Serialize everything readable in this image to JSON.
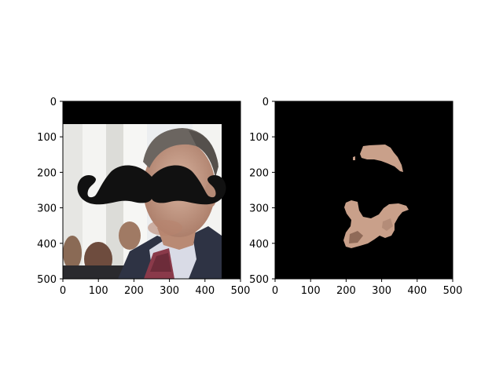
{
  "chart_data": [
    {
      "type": "image",
      "title": "",
      "xlabel": "",
      "ylabel": "",
      "xlim": [
        0,
        500
      ],
      "ylim": [
        500,
        0
      ],
      "xticks": [
        0,
        100,
        200,
        300,
        400,
        500
      ],
      "yticks": [
        0,
        100,
        200,
        300,
        400,
        500
      ],
      "xtick_labels": [
        "0",
        "100",
        "200",
        "300",
        "400",
        "500"
      ],
      "ytick_labels": [
        "0",
        "100",
        "200",
        "300",
        "400",
        "500"
      ],
      "grid": false,
      "image_content": {
        "description": "photo-of-man-with-black-mustache-overlay",
        "black_band_y_range": [
          0,
          65
        ],
        "photo_x_range": [
          0,
          450
        ],
        "black_right_band_x_range": [
          450,
          500
        ],
        "mustache_y_range": [
          175,
          285
        ]
      }
    },
    {
      "type": "image",
      "title": "",
      "xlabel": "",
      "ylabel": "",
      "xlim": [
        0,
        500
      ],
      "ylim": [
        500,
        0
      ],
      "xticks": [
        0,
        100,
        200,
        300,
        400,
        500
      ],
      "yticks": [
        0,
        100,
        200,
        300,
        400,
        500
      ],
      "xtick_labels": [
        "0",
        "100",
        "200",
        "300",
        "400",
        "500"
      ],
      "ytick_labels": [
        "0",
        "100",
        "200",
        "300",
        "400",
        "500"
      ],
      "grid": false,
      "image_content": {
        "description": "skin-region-mask-on-black-background",
        "background": "#000000",
        "skin_color": "#c9a08a"
      }
    }
  ],
  "colors": {
    "background": "#ffffff",
    "axes_frame": "#000000",
    "mask_background": "#000000",
    "skin": "#c9a08a",
    "mustache": "#111111",
    "suit": "#2e3344",
    "shirt": "#d9dbe6",
    "tie": "#8a3a4a"
  }
}
